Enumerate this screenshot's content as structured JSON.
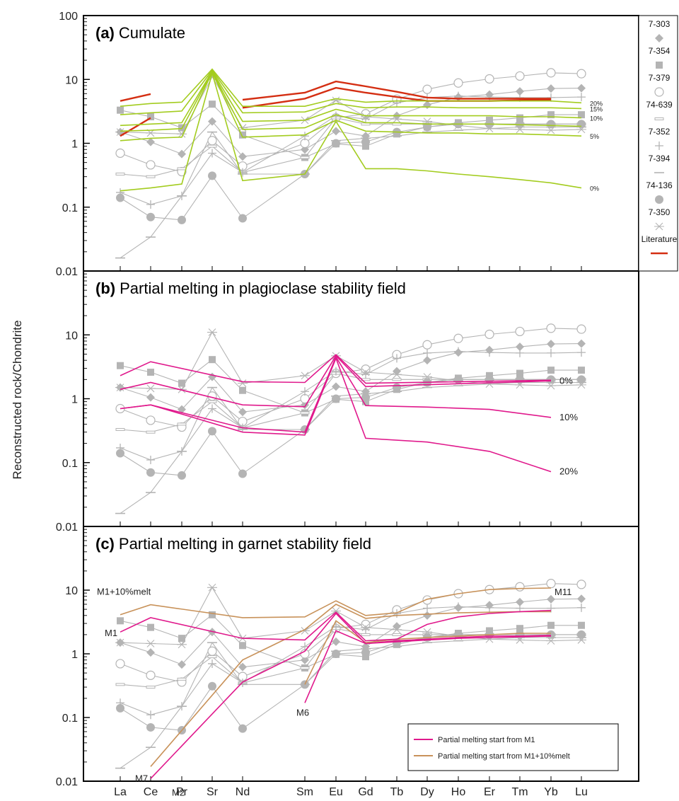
{
  "figure": {
    "y_axis_label": "Reconstructed rock/Chondrite",
    "elements": [
      "La",
      "Ce",
      "Pr",
      "Sr",
      "Nd",
      "Sm",
      "Eu",
      "Gd",
      "Tb",
      "Dy",
      "Ho",
      "Er",
      "Tm",
      "Yb",
      "Lu"
    ],
    "y_tick_labels": [
      "100",
      "10",
      "1",
      "0.1",
      "0.01"
    ],
    "legend": [
      {
        "label": "7-303",
        "marker": "diamond"
      },
      {
        "label": "7-354",
        "marker": "square"
      },
      {
        "label": "7-379",
        "marker": "circle-open"
      },
      {
        "label": "74-639",
        "marker": "rect-open"
      },
      {
        "label": "7-352",
        "marker": "plus"
      },
      {
        "label": "7-394",
        "marker": "dash"
      },
      {
        "label": "74-136",
        "marker": "circle"
      },
      {
        "label": "7-350",
        "marker": "asterisk"
      },
      {
        "label": "Literature",
        "marker": "redline"
      }
    ],
    "colors": {
      "sample": "#b4b4b4",
      "literature": "#d42e12",
      "cumulate": "#a3cc1f",
      "pink": "#e0198c",
      "tan": "#c8925a"
    }
  },
  "chart_data": [
    {
      "type": "line",
      "panel": "a",
      "title_letter": "(a)",
      "title": "Cumulate",
      "yscale": "log",
      "ylim": [
        0.01,
        100
      ],
      "categories": [
        "La",
        "Ce",
        "Pr",
        "Sr",
        "Nd",
        "Sm",
        "Eu",
        "Gd",
        "Tb",
        "Dy",
        "Ho",
        "Er",
        "Tm",
        "Yb",
        "Lu"
      ],
      "sample_series": [
        {
          "name": "7-303",
          "values": [
            1.5,
            1.05,
            0.68,
            2.2,
            0.62,
            0.8,
            1.55,
            1.3,
            2.7,
            4.0,
            5.3,
            5.8,
            6.5,
            7.2,
            7.3
          ]
        },
        {
          "name": "7-354",
          "values": [
            3.3,
            2.6,
            1.75,
            4.1,
            1.35,
            0.6,
            0.98,
            0.9,
            1.4,
            1.8,
            2.1,
            2.3,
            2.5,
            2.8,
            2.8
          ]
        },
        {
          "name": "7-379",
          "values": [
            0.7,
            0.46,
            0.36,
            1.1,
            0.44,
            1.0,
            2.5,
            2.9,
            4.9,
            7.0,
            8.8,
            10.2,
            11.3,
            12.7,
            12.3
          ]
        },
        {
          "name": "74-639",
          "values": [
            0.33,
            0.3,
            0.4,
            0.9,
            0.35,
            0.6,
            2.5,
            2.0,
            2.0,
            2.0,
            2.0,
            2.0,
            2.0,
            2.0,
            2.0
          ]
        },
        {
          "name": "7-352",
          "values": [
            0.17,
            0.11,
            0.15,
            0.7,
            0.35,
            1.3,
            2.7,
            2.4,
            4.3,
            5.2,
            5.5,
            5.3,
            5.2,
            5.2,
            5.3
          ]
        },
        {
          "name": "7-394",
          "values": [
            0.016,
            0.034,
            0.15,
            1.5,
            0.33,
            0.33,
            1.1,
            1.2,
            1.3,
            1.5,
            1.6,
            1.7,
            1.8,
            1.8,
            1.8
          ]
        },
        {
          "name": "74-136",
          "values": [
            0.14,
            0.07,
            0.063,
            0.31,
            0.067,
            0.33,
            1.0,
            1.05,
            1.5,
            1.8,
            2.0,
            2.0,
            2.0,
            2.0,
            2.0
          ]
        },
        {
          "name": "7-350",
          "values": [
            1.5,
            1.45,
            1.4,
            11.0,
            1.75,
            2.3,
            4.7,
            2.6,
            2.4,
            2.2,
            1.9,
            1.7,
            1.65,
            1.6,
            1.65
          ]
        }
      ],
      "literature_segments": [
        {
          "x": [
            "La",
            "Ce"
          ],
          "values": [
            4.6,
            5.9
          ]
        },
        {
          "x": [
            "La",
            "Ce"
          ],
          "values": [
            1.3,
            2.5
          ]
        },
        {
          "x": [
            "Nd",
            "Sm",
            "Eu",
            "Gd",
            "Tb",
            "Dy",
            "Ho",
            "Er",
            "Tm",
            "Yb"
          ],
          "values": [
            4.8,
            6.2,
            9.3,
            7.8,
            6.4,
            5.2,
            5.0,
            5.0,
            5.0,
            5.0
          ]
        },
        {
          "x": [
            "Nd",
            "Sm",
            "Eu",
            "Gd",
            "Tb",
            "Dy",
            "Ho",
            "Er",
            "Tm",
            "Yb"
          ],
          "values": [
            3.6,
            5.0,
            7.4,
            6.2,
            5.3,
            4.6,
            4.6,
            4.6,
            4.7,
            4.8
          ]
        }
      ],
      "model_series": [
        {
          "label": "20%",
          "values": [
            3.8,
            4.2,
            4.4,
            14.5,
            3.8,
            3.8,
            5.0,
            4.4,
            4.6,
            4.6,
            4.6,
            4.6,
            4.6,
            4.6,
            4.3
          ]
        },
        {
          "label": "15%",
          "values": [
            2.8,
            3.0,
            3.2,
            14.0,
            3.0,
            3.1,
            4.2,
            3.6,
            3.7,
            3.7,
            3.6,
            3.6,
            3.6,
            3.6,
            3.5
          ]
        },
        {
          "label": "10%",
          "values": [
            1.9,
            2.0,
            2.1,
            13.5,
            2.2,
            2.3,
            3.4,
            2.7,
            2.7,
            2.7,
            2.7,
            2.7,
            2.6,
            2.6,
            2.5
          ]
        },
        {
          "label": "",
          "values": [
            1.55,
            1.6,
            1.7,
            13.2,
            1.65,
            1.75,
            2.8,
            2.1,
            2.1,
            2.0,
            2.0,
            2.0,
            1.95,
            1.9,
            1.85
          ]
        },
        {
          "label": "5%",
          "values": [
            1.1,
            1.2,
            1.25,
            13.0,
            1.25,
            1.35,
            2.3,
            1.55,
            1.5,
            1.45,
            1.45,
            1.4,
            1.4,
            1.35,
            1.3
          ]
        },
        {
          "label": "0%",
          "values": [
            0.18,
            0.2,
            0.23,
            12.5,
            0.26,
            0.33,
            2.2,
            0.4,
            0.4,
            0.37,
            0.33,
            0.3,
            0.27,
            0.24,
            0.2
          ]
        }
      ]
    },
    {
      "type": "line",
      "panel": "b",
      "title_letter": "(b)",
      "title": "Partial melting in plagioclase stability field",
      "yscale": "log",
      "ylim": [
        0.01,
        100
      ],
      "categories": [
        "La",
        "Ce",
        "Pr",
        "Sr",
        "Nd",
        "Sm",
        "Eu",
        "Gd",
        "Tb",
        "Dy",
        "Ho",
        "Er",
        "Tm",
        "Yb",
        "Lu"
      ],
      "sample_series": [
        {
          "name": "7-303",
          "values": [
            1.5,
            1.05,
            0.68,
            2.2,
            0.62,
            0.8,
            1.55,
            1.3,
            2.7,
            4.0,
            5.3,
            5.8,
            6.5,
            7.2,
            7.3
          ]
        },
        {
          "name": "7-354",
          "values": [
            3.3,
            2.6,
            1.75,
            4.1,
            1.35,
            0.6,
            0.98,
            0.9,
            1.4,
            1.8,
            2.1,
            2.3,
            2.5,
            2.8,
            2.8
          ]
        },
        {
          "name": "7-379",
          "values": [
            0.7,
            0.46,
            0.36,
            1.1,
            0.44,
            1.0,
            2.5,
            2.9,
            4.9,
            7.0,
            8.8,
            10.2,
            11.3,
            12.7,
            12.3
          ]
        },
        {
          "name": "74-639",
          "values": [
            0.33,
            0.3,
            0.4,
            0.9,
            0.35,
            0.6,
            2.5,
            2.0,
            2.0,
            2.0,
            2.0,
            2.0,
            2.0,
            2.0,
            2.0
          ]
        },
        {
          "name": "7-352",
          "values": [
            0.17,
            0.11,
            0.15,
            0.7,
            0.35,
            1.3,
            2.7,
            2.4,
            4.3,
            5.2,
            5.5,
            5.3,
            5.2,
            5.2,
            5.3
          ]
        },
        {
          "name": "7-394",
          "values": [
            0.016,
            0.034,
            0.15,
            1.5,
            0.33,
            0.33,
            1.1,
            1.2,
            1.3,
            1.5,
            1.6,
            1.7,
            1.8,
            1.8,
            1.8
          ]
        },
        {
          "name": "74-136",
          "values": [
            0.14,
            0.07,
            0.063,
            0.31,
            0.067,
            0.33,
            1.0,
            1.05,
            1.5,
            1.8,
            2.0,
            2.0,
            2.0,
            2.0,
            2.0
          ]
        },
        {
          "name": "7-350",
          "values": [
            1.5,
            1.45,
            1.4,
            11.0,
            1.75,
            2.3,
            4.7,
            2.6,
            2.4,
            2.2,
            1.9,
            1.7,
            1.65,
            1.6,
            1.65
          ]
        }
      ],
      "model_series": [
        {
          "label": "",
          "x": [
            "La",
            "Ce",
            "Nd",
            "Sm",
            "Eu",
            "Gd",
            "Yb"
          ],
          "values": [
            2.3,
            3.8,
            1.85,
            1.8,
            4.9,
            1.75,
            1.95
          ]
        },
        {
          "label": "0%",
          "x": [
            "La",
            "Ce",
            "Nd",
            "Sm",
            "Eu",
            "Gd",
            "Yb"
          ],
          "values": [
            1.4,
            1.8,
            0.8,
            0.75,
            4.7,
            1.55,
            1.9
          ]
        },
        {
          "label": "10%",
          "x": [
            "La",
            "Ce",
            "Nd",
            "Sm",
            "Eu",
            "Gd",
            "Dy",
            "Er",
            "Yb"
          ],
          "values": [
            0.7,
            0.8,
            0.35,
            0.3,
            4.5,
            0.78,
            0.74,
            0.68,
            0.51
          ]
        },
        {
          "label": "20%",
          "x": [
            "La",
            "Ce",
            "Nd",
            "Sm",
            "Eu",
            "Gd",
            "Dy",
            "Er",
            "Yb"
          ],
          "values": [
            0.7,
            0.8,
            0.3,
            0.27,
            4.3,
            0.24,
            0.21,
            0.15,
            0.072
          ]
        }
      ]
    },
    {
      "type": "line",
      "panel": "c",
      "title_letter": "(c)",
      "title": "Partial melting in garnet stability field",
      "yscale": "log",
      "ylim": [
        0.01,
        100
      ],
      "categories": [
        "La",
        "Ce",
        "Pr",
        "Sr",
        "Nd",
        "Sm",
        "Eu",
        "Gd",
        "Tb",
        "Dy",
        "Ho",
        "Er",
        "Tm",
        "Yb",
        "Lu"
      ],
      "sample_series": [
        {
          "name": "7-303",
          "values": [
            1.5,
            1.05,
            0.68,
            2.2,
            0.62,
            0.8,
            1.55,
            1.3,
            2.7,
            4.0,
            5.3,
            5.8,
            6.5,
            7.2,
            7.3
          ]
        },
        {
          "name": "7-354",
          "values": [
            3.3,
            2.6,
            1.75,
            4.1,
            1.35,
            0.6,
            0.98,
            0.9,
            1.4,
            1.8,
            2.1,
            2.3,
            2.5,
            2.8,
            2.8
          ]
        },
        {
          "name": "7-379",
          "values": [
            0.7,
            0.46,
            0.36,
            1.1,
            0.44,
            1.0,
            2.5,
            2.9,
            4.9,
            7.0,
            8.8,
            10.2,
            11.3,
            12.7,
            12.3
          ]
        },
        {
          "name": "74-639",
          "values": [
            0.33,
            0.3,
            0.4,
            0.9,
            0.35,
            0.6,
            2.5,
            2.0,
            2.0,
            2.0,
            2.0,
            2.0,
            2.0,
            2.0,
            2.0
          ]
        },
        {
          "name": "7-352",
          "values": [
            0.17,
            0.11,
            0.15,
            0.7,
            0.35,
            1.3,
            2.7,
            2.4,
            4.3,
            5.2,
            5.5,
            5.3,
            5.2,
            5.2,
            5.3
          ]
        },
        {
          "name": "7-394",
          "values": [
            0.016,
            0.034,
            0.15,
            1.5,
            0.33,
            0.33,
            1.1,
            1.2,
            1.3,
            1.5,
            1.6,
            1.7,
            1.8,
            1.8,
            1.8
          ]
        },
        {
          "name": "74-136",
          "values": [
            0.14,
            0.07,
            0.063,
            0.31,
            0.067,
            0.33,
            1.0,
            1.05,
            1.5,
            1.8,
            2.0,
            2.0,
            2.0,
            2.0,
            2.0
          ]
        },
        {
          "name": "7-350",
          "values": [
            1.5,
            1.45,
            1.4,
            11.0,
            1.75,
            2.3,
            4.7,
            2.6,
            2.4,
            2.2,
            1.9,
            1.7,
            1.65,
            1.6,
            1.65
          ]
        }
      ],
      "model_series": [
        {
          "color": "tan",
          "x": [
            "La",
            "Ce",
            "Nd",
            "Sm",
            "Eu",
            "Gd",
            "Tb",
            "Dy",
            "Ho",
            "Er",
            "Tm",
            "Yb"
          ],
          "values": [
            4.1,
            5.9,
            3.7,
            3.8,
            6.8,
            4.0,
            4.4,
            7.2,
            8.8,
            10.2,
            10.6,
            10.8
          ]
        },
        {
          "color": "tan",
          "x": [
            "Ce",
            "Nd",
            "Sm",
            "Eu",
            "Gd",
            "Tb",
            "Dy",
            "Ho",
            "Er",
            "Tm",
            "Yb"
          ],
          "values": [
            0.017,
            0.8,
            2.4,
            6.0,
            3.6,
            4.0,
            4.2,
            4.4,
            4.5,
            4.6,
            4.6
          ]
        },
        {
          "color": "tan",
          "x": [
            "Sm",
            "Eu",
            "Gd",
            "Tb",
            "Dy",
            "Ho",
            "Er",
            "Tm",
            "Yb"
          ],
          "values": [
            0.33,
            3.3,
            1.5,
            1.7,
            1.8,
            1.9,
            2.0,
            2.1,
            2.1
          ]
        },
        {
          "color": "pink",
          "x": [
            "La",
            "Ce",
            "Nd",
            "Sm",
            "Eu",
            "Gd",
            "Tb",
            "Dy",
            "Ho",
            "Er",
            "Tm",
            "Yb"
          ],
          "values": [
            2.2,
            3.7,
            1.75,
            1.65,
            4.5,
            1.6,
            1.7,
            2.9,
            3.8,
            4.3,
            4.6,
            4.8
          ]
        },
        {
          "color": "pink",
          "x": [
            "Ce",
            "Nd",
            "Sm",
            "Eu",
            "Gd",
            "Tb",
            "Dy",
            "Ho",
            "Er",
            "Tm",
            "Yb"
          ],
          "values": [
            0.011,
            0.36,
            1.1,
            4.3,
            1.45,
            1.6,
            1.7,
            1.8,
            1.9,
            1.9,
            1.95
          ]
        },
        {
          "color": "pink",
          "x": [
            "Sm",
            "Eu",
            "Gd",
            "Tb",
            "Dy",
            "Ho",
            "Er",
            "Tm",
            "Yb"
          ],
          "values": [
            0.17,
            2.3,
            1.45,
            1.55,
            1.65,
            1.75,
            1.8,
            1.85,
            1.9
          ]
        }
      ],
      "annotations": [
        {
          "text": "M1+10%melt",
          "x": "La",
          "y": 5.9
        },
        {
          "text": "M1",
          "x": "La",
          "y": 2.2
        },
        {
          "text": "M11",
          "x": "Yb",
          "y": 10.8
        },
        {
          "text": "M6",
          "x": "Sm",
          "y": 0.17
        },
        {
          "text": "M7",
          "x": "Ce",
          "y": 0.017
        },
        {
          "text": "M2",
          "x": "Pr",
          "y": 0.011
        }
      ],
      "legend": [
        {
          "label": "Partial melting start from M1",
          "color": "pink"
        },
        {
          "label": "Partial melting start from M1+10%melt",
          "color": "tan"
        }
      ]
    }
  ]
}
